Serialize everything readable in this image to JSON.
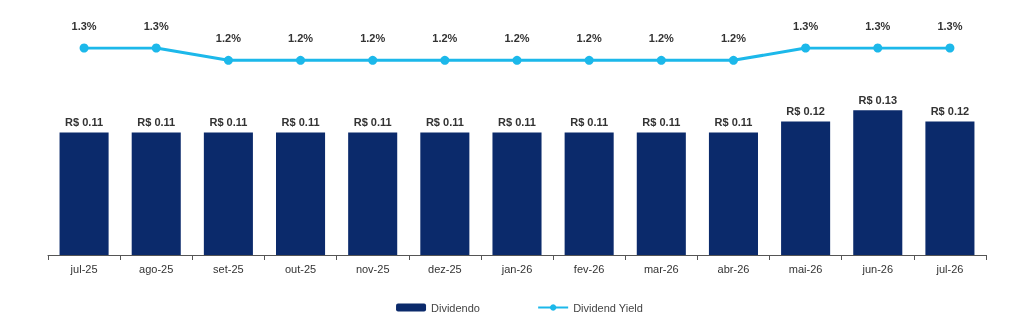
{
  "chart_data": [
    {
      "type": "bar",
      "categories": [
        "jul-25",
        "ago-25",
        "set-25",
        "out-25",
        "nov-25",
        "dez-25",
        "jan-26",
        "fev-26",
        "mar-26",
        "abr-26",
        "mai-26",
        "jun-26",
        "jul-26"
      ],
      "series": [
        {
          "name": "Dividendo",
          "color": "#0b2a6b",
          "values": [
            0.11,
            0.11,
            0.11,
            0.11,
            0.11,
            0.11,
            0.11,
            0.11,
            0.11,
            0.11,
            0.12,
            0.13,
            0.12
          ],
          "value_labels": [
            "R$ 0.11",
            "R$ 0.11",
            "R$ 0.11",
            "R$ 0.11",
            "R$ 0.11",
            "R$ 0.11",
            "R$ 0.11",
            "R$ 0.11",
            "R$ 0.11",
            "R$ 0.11",
            "R$ 0.12",
            "R$ 0.13",
            "R$ 0.12"
          ]
        }
      ],
      "tick_labels": "x",
      "grid": false,
      "legend": "bottom"
    },
    {
      "type": "line",
      "categories": [
        null,
        null,
        null,
        null,
        null,
        null,
        null,
        null,
        null,
        null,
        null,
        null,
        null
      ],
      "series": [
        {
          "name": "Dividend Yield",
          "color": "#1cb8ea",
          "values": [
            1.3,
            1.3,
            1.2,
            1.2,
            1.2,
            1.2,
            1.2,
            1.2,
            1.2,
            1.2,
            1.3,
            1.3,
            1.3
          ],
          "value_labels": [
            "1.3%",
            "1.3%",
            "1.2%",
            "1.2%",
            "1.2%",
            "1.2%",
            "1.2%",
            "1.2%",
            "1.2%",
            "1.2%",
            "1.3%",
            "1.3%",
            "1.3%"
          ]
        }
      ],
      "marker": "circle",
      "tick_labels": false,
      "grid": false,
      "legend": "bottom"
    }
  ]
}
